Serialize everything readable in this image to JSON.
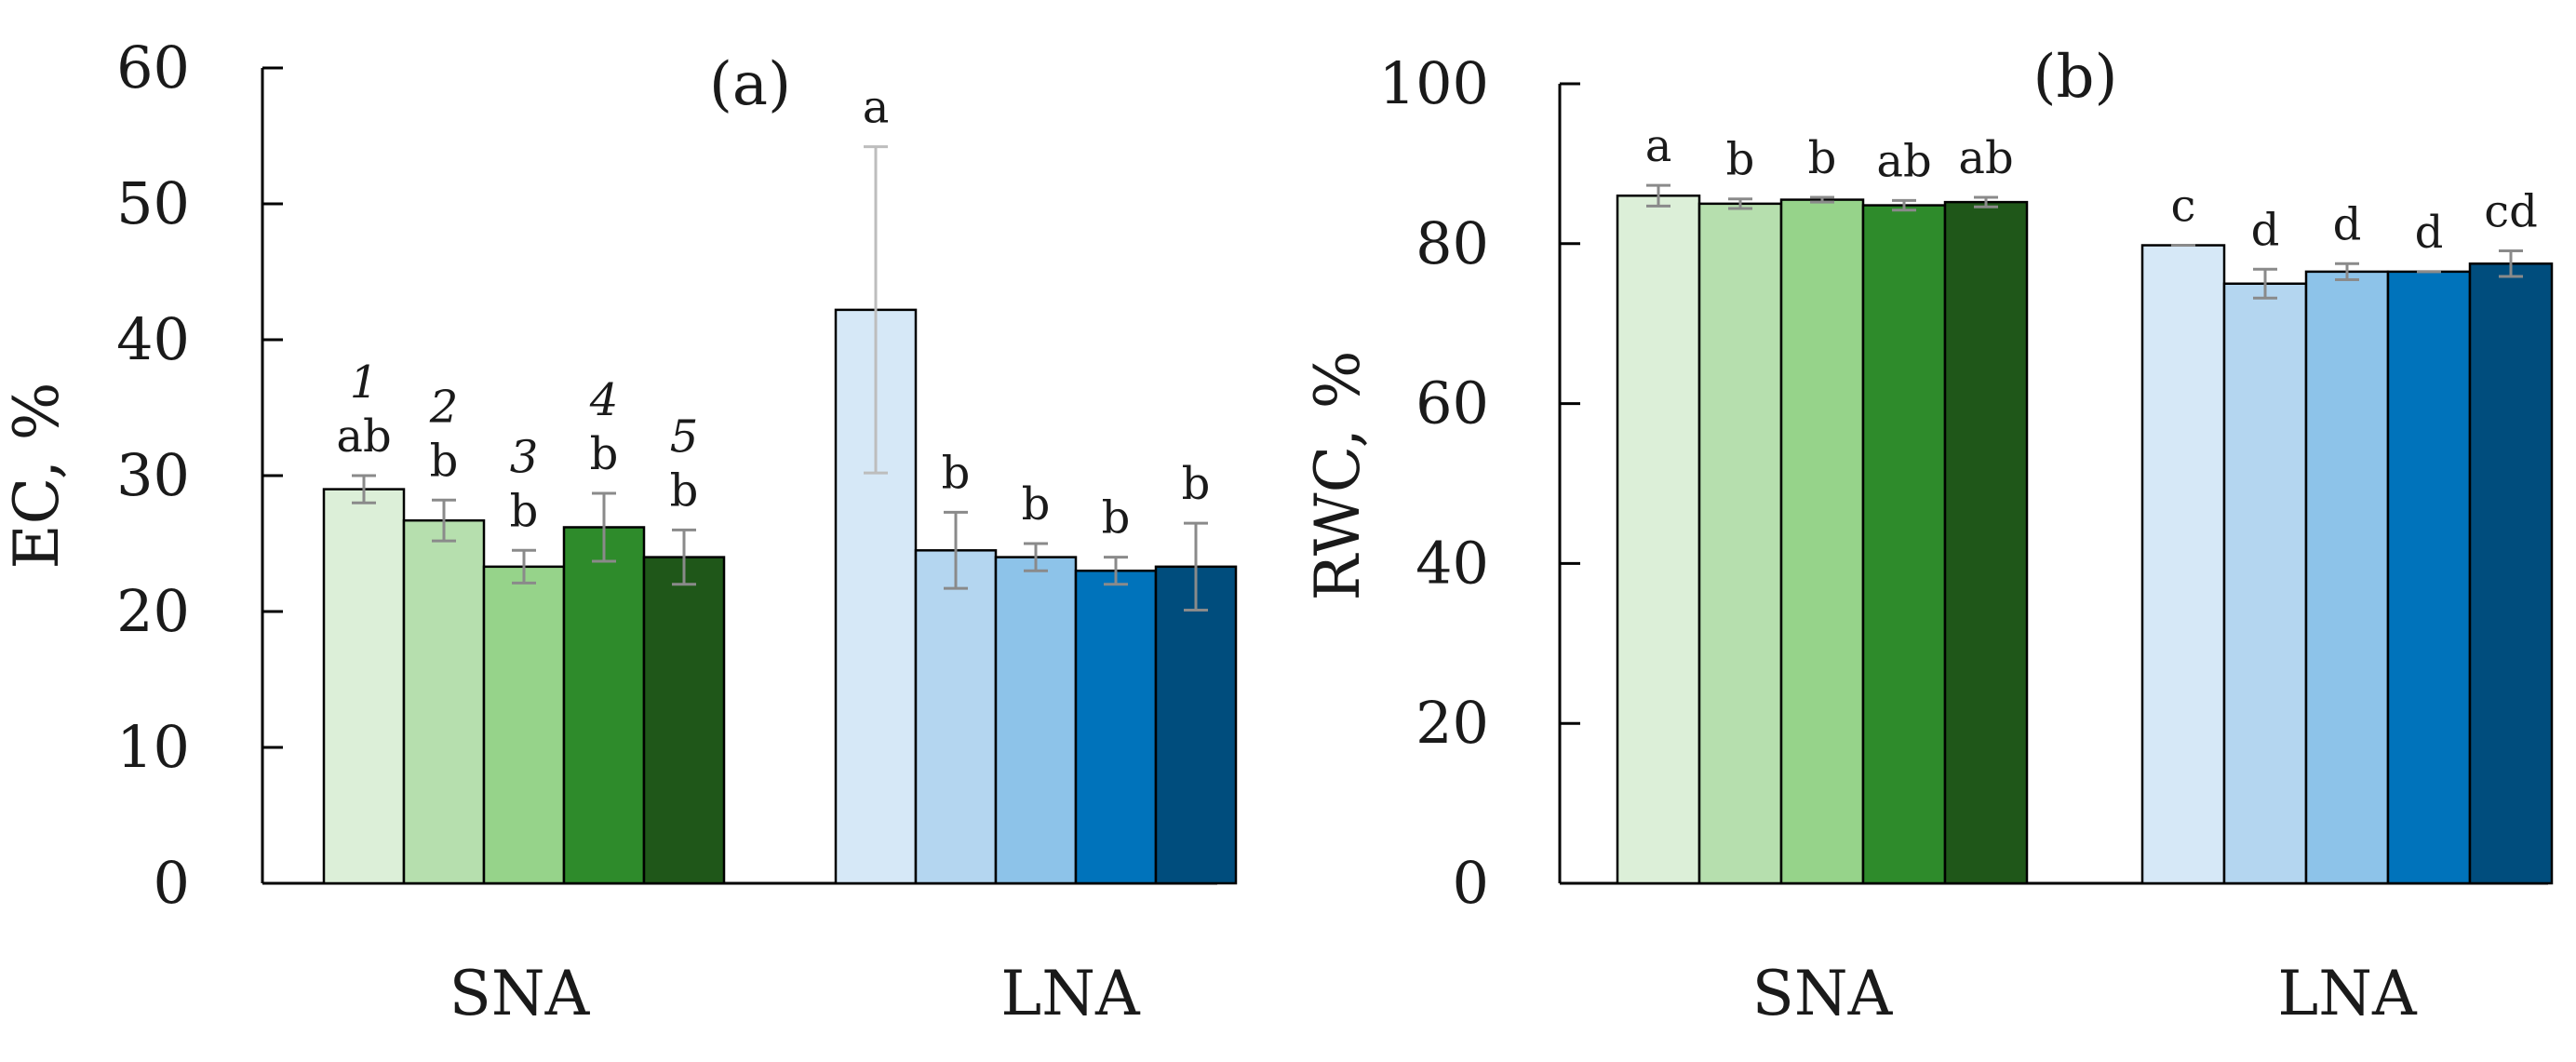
{
  "chart_data": [
    {
      "type": "bar",
      "panel_label": "(a)",
      "ylabel": "EC, %",
      "ylim": [
        0,
        60
      ],
      "yticks": [
        "0",
        "10",
        "20",
        "30",
        "40",
        "50",
        "60"
      ],
      "groups": [
        {
          "name": "SNA",
          "bars": [
            {
              "value": 29.0,
              "error": 1.0,
              "letter": "ab",
              "number": "1",
              "color": "#dcefd8"
            },
            {
              "value": 26.7,
              "error": 1.5,
              "letter": "b",
              "number": "2",
              "color": "#b6dfae"
            },
            {
              "value": 23.3,
              "error": 1.2,
              "letter": "b",
              "number": "3",
              "color": "#96d38a"
            },
            {
              "value": 26.2,
              "error": 2.5,
              "letter": "b",
              "number": "4",
              "color": "#2e8b2b"
            },
            {
              "value": 24.0,
              "error": 2.0,
              "letter": "b",
              "number": "5",
              "color": "#1f5719"
            }
          ]
        },
        {
          "name": "LNA",
          "bars": [
            {
              "value": 42.2,
              "error": 12.0,
              "letter": "a",
              "color": "#d6e8f7"
            },
            {
              "value": 24.5,
              "error": 2.8,
              "letter": "b",
              "color": "#b4d6f0"
            },
            {
              "value": 24.0,
              "error": 1.0,
              "letter": "b",
              "color": "#8dc3e9"
            },
            {
              "value": 23.0,
              "error": 1.0,
              "letter": "b",
              "color": "#0073bb"
            },
            {
              "value": 23.3,
              "error": 3.2,
              "letter": "b",
              "color": "#004d7d"
            }
          ]
        }
      ]
    },
    {
      "type": "bar",
      "panel_label": "(b)",
      "ylabel": "RWC, %",
      "ylim": [
        0,
        100
      ],
      "yticks": [
        "0",
        "20",
        "40",
        "60",
        "80",
        "100"
      ],
      "groups": [
        {
          "name": "SNA",
          "bars": [
            {
              "value": 86.0,
              "error": 1.3,
              "letter": "a",
              "color": "#dcefd8"
            },
            {
              "value": 85.0,
              "error": 0.6,
              "letter": "b",
              "color": "#b6dfae"
            },
            {
              "value": 85.5,
              "error": 0.3,
              "letter": "b",
              "color": "#96d38a"
            },
            {
              "value": 84.8,
              "error": 0.6,
              "letter": "ab",
              "color": "#2e8b2b"
            },
            {
              "value": 85.2,
              "error": 0.6,
              "letter": "ab",
              "color": "#1f5719"
            }
          ]
        },
        {
          "name": "LNA",
          "bars": [
            {
              "value": 79.8,
              "error": 0.0,
              "letter": "c",
              "color": "#d6e8f7"
            },
            {
              "value": 75.0,
              "error": 1.8,
              "letter": "d",
              "color": "#b4d6f0"
            },
            {
              "value": 76.5,
              "error": 1.0,
              "letter": "d",
              "color": "#8dc3e9"
            },
            {
              "value": 76.5,
              "error": 0.0,
              "letter": "d",
              "color": "#0073bb"
            },
            {
              "value": 77.5,
              "error": 1.6,
              "letter": "cd",
              "color": "#004d7d"
            }
          ]
        }
      ]
    }
  ]
}
